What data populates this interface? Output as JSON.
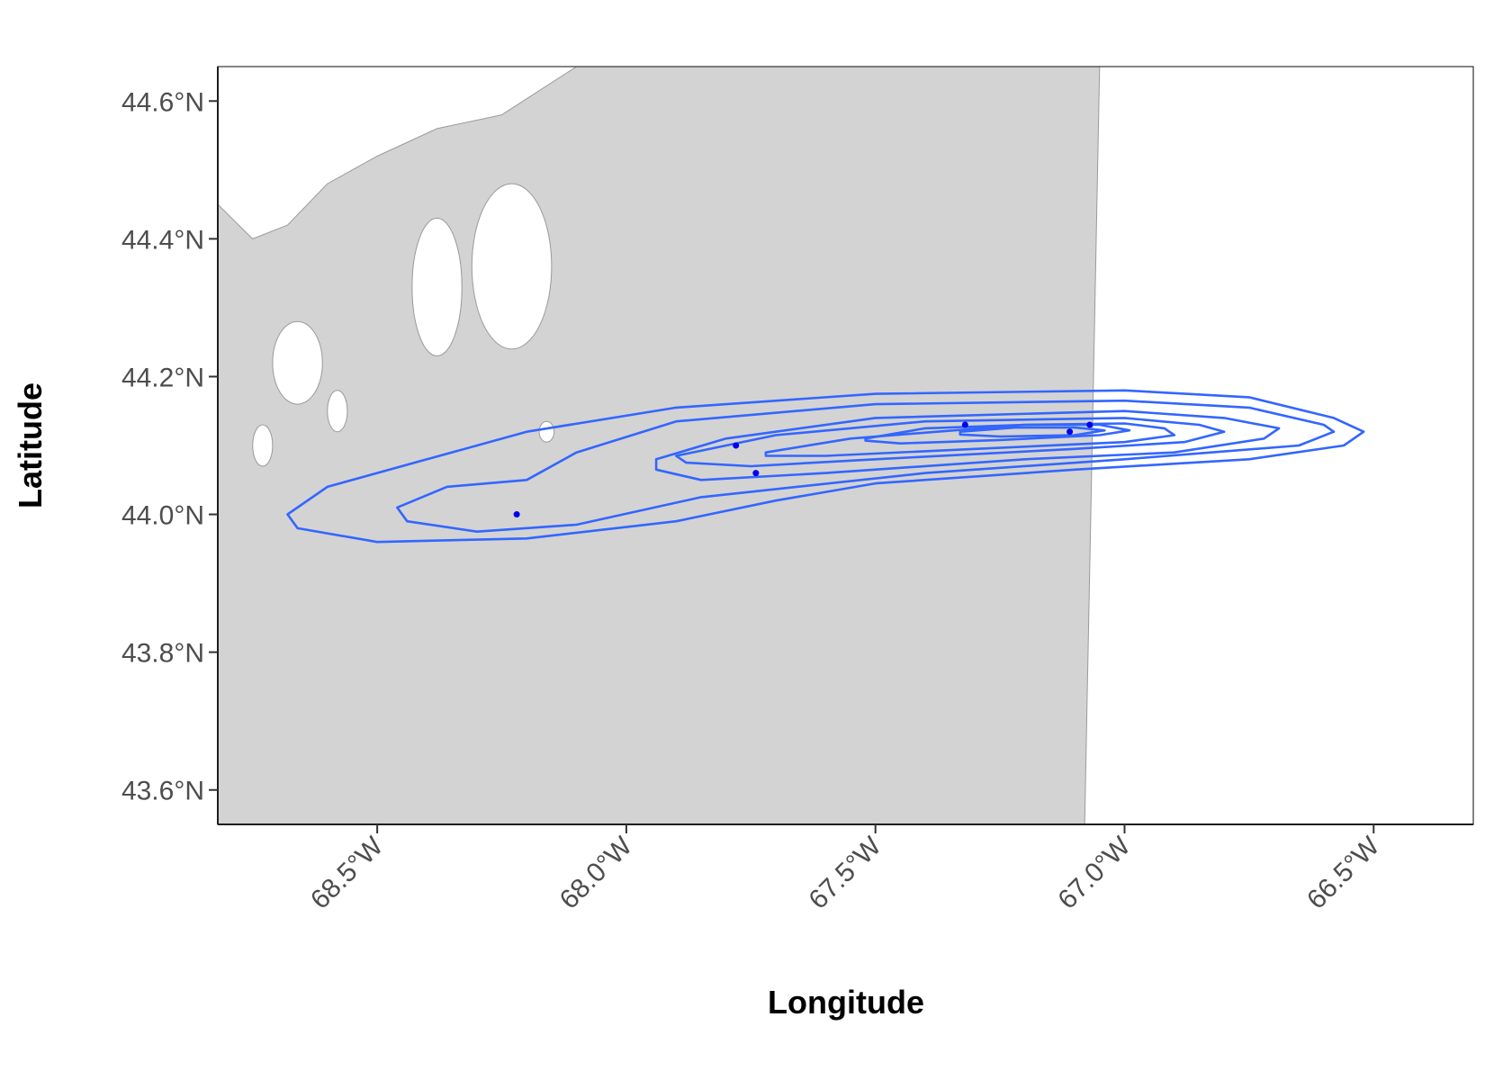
{
  "chart_data": {
    "type": "map-contour",
    "xlabel": "Longitude",
    "ylabel": "Latitude",
    "xlim": [
      -68.82,
      -66.3
    ],
    "ylim": [
      43.55,
      44.65
    ],
    "x_ticks": [
      {
        "value": -68.5,
        "label": "68.5°W"
      },
      {
        "value": -68.0,
        "label": "68.0°W"
      },
      {
        "value": -67.5,
        "label": "67.5°W"
      },
      {
        "value": -67.0,
        "label": "67.0°W"
      },
      {
        "value": -66.5,
        "label": "66.5°W"
      }
    ],
    "y_ticks": [
      {
        "value": 43.6,
        "label": "43.6°N"
      },
      {
        "value": 43.8,
        "label": "43.8°N"
      },
      {
        "value": 44.0,
        "label": "44.0°N"
      },
      {
        "value": 44.2,
        "label": "44.2°N"
      },
      {
        "value": 44.4,
        "label": "44.4°N"
      },
      {
        "value": 44.6,
        "label": "44.6°N"
      }
    ],
    "grid": false,
    "colors": {
      "land": "#d3d3d3",
      "land_outline": "#9a9a9a",
      "contour": "#3366ff",
      "points": "#0000ee",
      "axis": "#000000"
    },
    "land_polygon": [
      [
        -68.82,
        43.55
      ],
      [
        -67.08,
        43.55
      ],
      [
        -67.05,
        44.65
      ],
      [
        -68.1,
        44.65
      ],
      [
        -68.25,
        44.58
      ],
      [
        -68.38,
        44.56
      ],
      [
        -68.5,
        44.52
      ],
      [
        -68.6,
        44.48
      ],
      [
        -68.68,
        44.42
      ],
      [
        -68.75,
        44.4
      ],
      [
        -68.82,
        44.45
      ]
    ],
    "islands": [
      {
        "cx": -68.23,
        "cy": 44.36,
        "rx": 0.08,
        "ry": 0.12
      },
      {
        "cx": -68.38,
        "cy": 44.33,
        "rx": 0.05,
        "ry": 0.1
      },
      {
        "cx": -68.66,
        "cy": 44.22,
        "rx": 0.05,
        "ry": 0.06
      },
      {
        "cx": -68.58,
        "cy": 44.15,
        "rx": 0.02,
        "ry": 0.03
      },
      {
        "cx": -68.73,
        "cy": 44.1,
        "rx": 0.02,
        "ry": 0.03
      },
      {
        "cx": -68.16,
        "cy": 44.12,
        "rx": 0.015,
        "ry": 0.015
      }
    ],
    "contours": [
      {
        "level": 1,
        "points": [
          [
            -68.68,
            44.0
          ],
          [
            -68.6,
            44.04
          ],
          [
            -68.4,
            44.08
          ],
          [
            -68.2,
            44.12
          ],
          [
            -67.9,
            44.155
          ],
          [
            -67.5,
            44.175
          ],
          [
            -67.0,
            44.18
          ],
          [
            -66.75,
            44.17
          ],
          [
            -66.58,
            44.14
          ],
          [
            -66.52,
            44.12
          ],
          [
            -66.56,
            44.1
          ],
          [
            -66.75,
            44.08
          ],
          [
            -67.1,
            44.065
          ],
          [
            -67.5,
            44.045
          ],
          [
            -67.7,
            44.02
          ],
          [
            -67.9,
            43.99
          ],
          [
            -68.2,
            43.965
          ],
          [
            -68.5,
            43.96
          ],
          [
            -68.66,
            43.98
          ]
        ]
      },
      {
        "level": 2,
        "points": [
          [
            -68.46,
            44.01
          ],
          [
            -68.36,
            44.04
          ],
          [
            -68.2,
            44.05
          ],
          [
            -68.1,
            44.09
          ],
          [
            -67.9,
            44.135
          ],
          [
            -67.5,
            44.16
          ],
          [
            -67.0,
            44.165
          ],
          [
            -66.75,
            44.155
          ],
          [
            -66.6,
            44.13
          ],
          [
            -66.58,
            44.12
          ],
          [
            -66.65,
            44.1
          ],
          [
            -67.0,
            44.08
          ],
          [
            -67.4,
            44.06
          ],
          [
            -67.85,
            44.025
          ],
          [
            -68.1,
            43.985
          ],
          [
            -68.3,
            43.975
          ],
          [
            -68.44,
            43.99
          ]
        ]
      },
      {
        "level": 3,
        "points": [
          [
            -67.94,
            44.08
          ],
          [
            -67.8,
            44.11
          ],
          [
            -67.5,
            44.14
          ],
          [
            -67.0,
            44.15
          ],
          [
            -66.8,
            44.14
          ],
          [
            -66.69,
            44.125
          ],
          [
            -66.72,
            44.11
          ],
          [
            -66.9,
            44.09
          ],
          [
            -67.2,
            44.08
          ],
          [
            -67.6,
            44.06
          ],
          [
            -67.85,
            44.05
          ],
          [
            -67.94,
            44.065
          ]
        ]
      },
      {
        "level": 4,
        "points": [
          [
            -67.9,
            44.085
          ],
          [
            -67.7,
            44.115
          ],
          [
            -67.4,
            44.135
          ],
          [
            -67.0,
            44.14
          ],
          [
            -66.85,
            44.13
          ],
          [
            -66.8,
            44.12
          ],
          [
            -66.88,
            44.105
          ],
          [
            -67.1,
            44.095
          ],
          [
            -67.5,
            44.08
          ],
          [
            -67.75,
            44.07
          ],
          [
            -67.88,
            44.075
          ]
        ]
      },
      {
        "level": 5,
        "points": [
          [
            -67.72,
            44.09
          ],
          [
            -67.55,
            44.11
          ],
          [
            -67.2,
            44.13
          ],
          [
            -67.0,
            44.132
          ],
          [
            -66.92,
            44.125
          ],
          [
            -66.9,
            44.115
          ],
          [
            -67.0,
            44.105
          ],
          [
            -67.3,
            44.095
          ],
          [
            -67.6,
            44.085
          ],
          [
            -67.72,
            44.085
          ]
        ]
      },
      {
        "level": 6,
        "points": [
          [
            -67.52,
            44.11
          ],
          [
            -67.4,
            44.125
          ],
          [
            -67.2,
            44.13
          ],
          [
            -67.05,
            44.13
          ],
          [
            -66.99,
            44.122
          ],
          [
            -67.05,
            44.115
          ],
          [
            -67.25,
            44.108
          ],
          [
            -67.45,
            44.103
          ],
          [
            -67.52,
            44.107
          ]
        ]
      },
      {
        "level": 7,
        "points": [
          [
            -67.33,
            44.12
          ],
          [
            -67.22,
            44.126
          ],
          [
            -67.1,
            44.126
          ],
          [
            -67.04,
            44.122
          ],
          [
            -67.1,
            44.115
          ],
          [
            -67.25,
            44.113
          ],
          [
            -67.33,
            44.116
          ]
        ]
      }
    ],
    "points": [
      {
        "x": -68.22,
        "y": 44.0
      },
      {
        "x": -67.78,
        "y": 44.1
      },
      {
        "x": -67.74,
        "y": 44.06
      },
      {
        "x": -67.32,
        "y": 44.13
      },
      {
        "x": -67.11,
        "y": 44.12
      },
      {
        "x": -67.07,
        "y": 44.13
      }
    ]
  }
}
